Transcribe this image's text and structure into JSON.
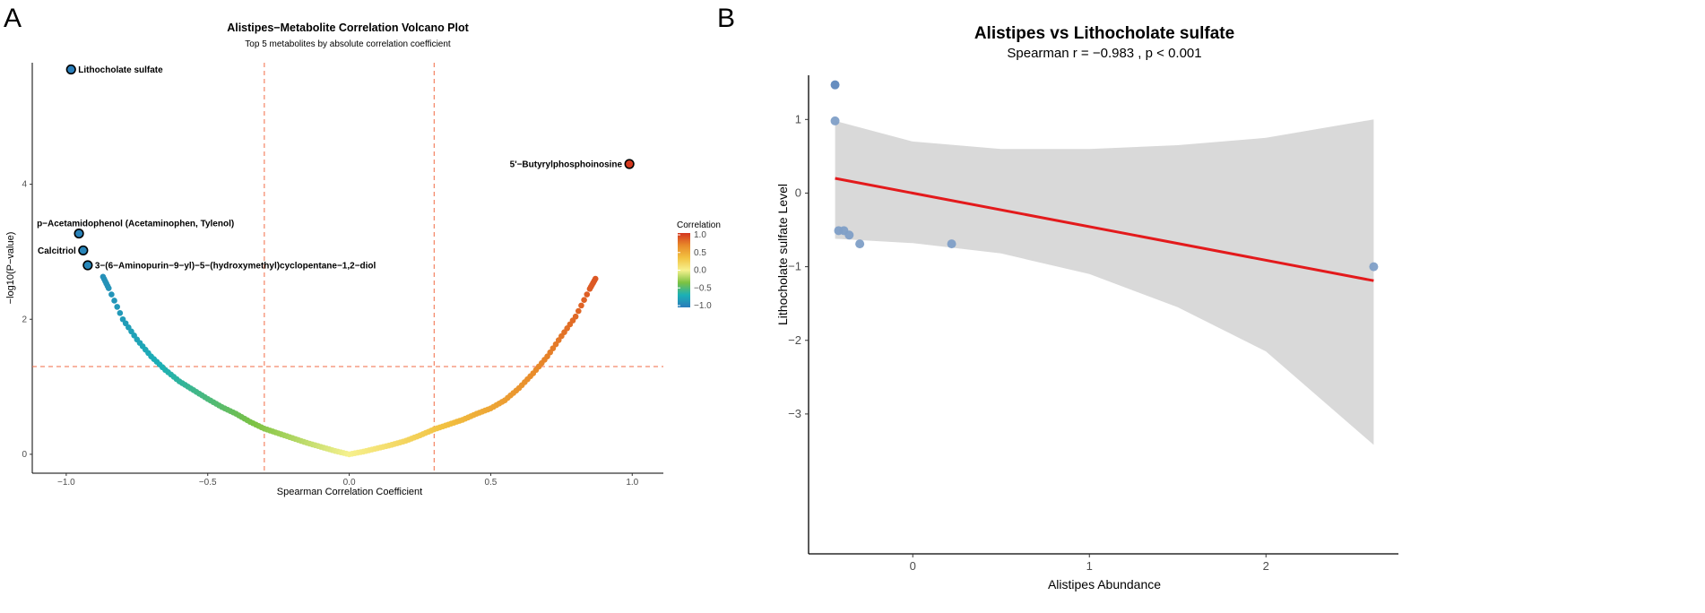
{
  "panel_labels": [
    "A",
    "B"
  ],
  "chart_data": [
    {
      "type": "scatter",
      "title": "Alistipes−Metabolite Correlation Volcano Plot",
      "subtitle": "Top 5 metabolites by absolute correlation coefficient",
      "xlabel": "Spearman Correlation Coefficient",
      "ylabel": "−log10(P−value)",
      "xlim": [
        -1.12,
        1.11
      ],
      "ylim": [
        -0.28,
        5.8
      ],
      "xticks": [
        -1.0,
        -0.5,
        0.0,
        0.5,
        1.0
      ],
      "xtick_labels": [
        "−1.0",
        "−0.5",
        "0.0",
        "0.5",
        "1.0"
      ],
      "yticks": [
        0,
        2,
        4
      ],
      "ytick_labels": [
        "0",
        "2",
        "4"
      ],
      "thresholds": {
        "correlation": [
          -0.3,
          0.3
        ],
        "neg_log10_p": 1.3
      },
      "legend": {
        "title": "Correlation",
        "position": "right",
        "ticks": [
          "1.0",
          "0.5",
          "0.0",
          "−0.5",
          "−1.0"
        ],
        "colors": [
          "#2b7bba",
          "#1bb0b6",
          "#7cc242",
          "#f6f18e",
          "#f2c241",
          "#e88a2a",
          "#d4361f"
        ]
      },
      "points": [
        [
          -0.87,
          2.63
        ],
        [
          -0.85,
          2.46
        ],
        [
          -0.8,
          2.0
        ],
        [
          -0.75,
          1.7
        ],
        [
          -0.7,
          1.45
        ],
        [
          -0.65,
          1.25
        ],
        [
          -0.6,
          1.08
        ],
        [
          -0.55,
          0.95
        ],
        [
          -0.5,
          0.82
        ],
        [
          -0.45,
          0.7
        ],
        [
          -0.4,
          0.6
        ],
        [
          -0.35,
          0.48
        ],
        [
          -0.3,
          0.38
        ],
        [
          -0.25,
          0.31
        ],
        [
          -0.2,
          0.24
        ],
        [
          -0.15,
          0.17
        ],
        [
          -0.1,
          0.11
        ],
        [
          -0.05,
          0.05
        ],
        [
          0,
          0
        ],
        [
          0.05,
          0.04
        ],
        [
          0.1,
          0.09
        ],
        [
          0.15,
          0.14
        ],
        [
          0.2,
          0.2
        ],
        [
          0.25,
          0.28
        ],
        [
          0.3,
          0.37
        ],
        [
          0.35,
          0.44
        ],
        [
          0.4,
          0.51
        ],
        [
          0.45,
          0.6
        ],
        [
          0.5,
          0.68
        ],
        [
          0.55,
          0.8
        ],
        [
          0.6,
          0.98
        ],
        [
          0.65,
          1.2
        ],
        [
          0.7,
          1.45
        ],
        [
          0.75,
          1.75
        ],
        [
          0.8,
          2.04
        ],
        [
          0.85,
          2.45
        ],
        [
          0.87,
          2.6
        ]
      ],
      "highlighted": [
        {
          "name": "Lithocholate sulfate",
          "r": -0.983,
          "y": 5.7,
          "side": "right"
        },
        {
          "name": "p−Acetamidophenol (Acetaminophen, Tylenol)",
          "r": -0.955,
          "y": 3.27,
          "side": "above"
        },
        {
          "name": "Calcitriol",
          "r": -0.94,
          "y": 3.02,
          "side": "left"
        },
        {
          "name": "3−(6−Aminopurin−9−yl)−5−(hydroxymethyl)cyclopentane−1,2−diol",
          "r": -0.924,
          "y": 2.8,
          "side": "right"
        },
        {
          "name": "5'−Butyrylphosphoinosine",
          "r": 0.99,
          "y": 4.3,
          "side": "left"
        }
      ]
    },
    {
      "type": "scatter",
      "title": "Alistipes vs Lithocholate sulfate",
      "subtitle": "Spearman r = −0.983 , p < 0.001",
      "xlabel": "Alistipes Abundance",
      "ylabel": "Lithocholate sulfate Level",
      "xlim": [
        -0.59,
        2.75
      ],
      "ylim": [
        -4.9,
        1.6
      ],
      "xticks": [
        0,
        1,
        2
      ],
      "xtick_labels": [
        "0",
        "1",
        "2"
      ],
      "yticks": [
        1,
        0,
        -1,
        -2,
        -3
      ],
      "ytick_labels": [
        "1",
        "0",
        "−1",
        "−2",
        "−3"
      ],
      "points": [
        [
          -0.44,
          1.47
        ],
        [
          -0.44,
          0.98
        ],
        [
          -0.42,
          -0.51
        ],
        [
          -0.39,
          -0.51
        ],
        [
          -0.36,
          -0.57
        ],
        [
          -0.3,
          -0.69
        ],
        [
          0.22,
          -0.69
        ],
        [
          2.61,
          -1.0
        ]
      ],
      "fit_line": [
        [
          -0.44,
          0.2
        ],
        [
          2.61,
          -1.19
        ]
      ],
      "ci_upper": [
        [
          -0.44,
          0.98
        ],
        [
          0,
          0.7
        ],
        [
          0.5,
          0.6
        ],
        [
          1.0,
          0.6
        ],
        [
          1.5,
          0.65
        ],
        [
          2.0,
          0.75
        ],
        [
          2.61,
          1.0
        ]
      ],
      "ci_lower": [
        [
          -0.44,
          -0.62
        ],
        [
          0,
          -0.68
        ],
        [
          0.5,
          -0.82
        ],
        [
          1.0,
          -1.1
        ],
        [
          1.5,
          -1.55
        ],
        [
          2.0,
          -2.15
        ],
        [
          2.61,
          -3.42
        ]
      ],
      "colors": {
        "point": "#7f9fc7",
        "line": "#e31a1c",
        "ci": "#d9d9d9"
      }
    }
  ]
}
